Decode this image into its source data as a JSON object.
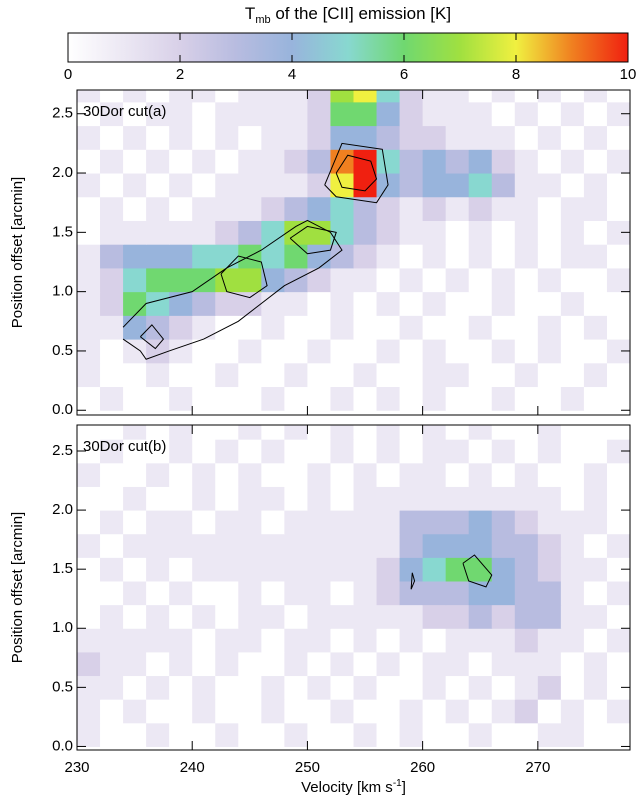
{
  "colorbar": {
    "title": [
      "T",
      "mb",
      " of the [CII] emission [K]"
    ],
    "lim": [
      0,
      10
    ],
    "ticks": [
      0,
      2,
      4,
      6,
      8,
      10
    ],
    "colorscale": [
      [
        0,
        "#ffffff"
      ],
      [
        2,
        "#d8d0e8"
      ],
      [
        3,
        "#b8bce0"
      ],
      [
        4,
        "#98b4dc"
      ],
      [
        5,
        "#88d8d0"
      ],
      [
        6,
        "#70d870"
      ],
      [
        7,
        "#a0e040"
      ],
      [
        8,
        "#f0f040"
      ],
      [
        9,
        "#f08020"
      ],
      [
        10,
        "#f02010"
      ]
    ]
  },
  "chart_data": [
    {
      "type": "heatmap",
      "label": "30Dor cut(a)",
      "ylabel": "Position offset [arcmin]",
      "xlim": [
        230,
        278
      ],
      "ylim": [
        -0.04,
        2.7
      ],
      "xticks": [
        230,
        240,
        250,
        260,
        270
      ],
      "yticks": [
        {
          "value": 0,
          "label": "0.0"
        },
        {
          "value": 0.5,
          "label": "0.5"
        },
        {
          "value": 1,
          "label": "1.0"
        },
        {
          "value": 1.5,
          "label": "1.5"
        },
        {
          "value": 2,
          "label": "2.0"
        },
        {
          "value": 2.5,
          "label": "2.5"
        }
      ],
      "xbins": [
        230,
        232,
        234,
        236,
        238,
        240,
        242,
        244,
        246,
        248,
        250,
        252,
        254,
        256,
        258,
        260,
        262,
        264,
        266,
        268,
        270,
        272,
        274,
        276,
        278
      ],
      "ybins": [
        0,
        0.2,
        0.4,
        0.6,
        0.8,
        1,
        1.2,
        1.4,
        1.6,
        1.8,
        2,
        2.2,
        2.4,
        2.6,
        2.8
      ],
      "z": [
        [
          0,
          1,
          0,
          0,
          1,
          0,
          0,
          0,
          1,
          0,
          0,
          1,
          0,
          1,
          0,
          1,
          0,
          0,
          1,
          0,
          0,
          1,
          0,
          0
        ],
        [
          1,
          0,
          0,
          1,
          0,
          0,
          1,
          0,
          0,
          1,
          0,
          0,
          1,
          0,
          0,
          1,
          1,
          0,
          0,
          1,
          0,
          0,
          1,
          0
        ],
        [
          1,
          0,
          1,
          2,
          1,
          0,
          0,
          1,
          0,
          0,
          1,
          0,
          0,
          1,
          0,
          1,
          0,
          0,
          1,
          0,
          1,
          0,
          0,
          1
        ],
        [
          1,
          1,
          4,
          3,
          2,
          1,
          0,
          0,
          1,
          0,
          0,
          1,
          0,
          0,
          1,
          0,
          0,
          1,
          0,
          0,
          1,
          0,
          1,
          0
        ],
        [
          1,
          2,
          6,
          5,
          4,
          3,
          2,
          2,
          1,
          1,
          0,
          1,
          0,
          1,
          0,
          1,
          0,
          0,
          1,
          0,
          0,
          1,
          0,
          0
        ],
        [
          1,
          2,
          5,
          6,
          6,
          6,
          7,
          7,
          4,
          3,
          2,
          1,
          1,
          0,
          1,
          0,
          1,
          0,
          1,
          0,
          1,
          0,
          0,
          1
        ],
        [
          1,
          3,
          4,
          4,
          4,
          5,
          5,
          6,
          5,
          6,
          4,
          3,
          2,
          1,
          0,
          1,
          0,
          1,
          0,
          1,
          0,
          1,
          1,
          0
        ],
        [
          0,
          1,
          1,
          1,
          1,
          1,
          2,
          3,
          5,
          7,
          7,
          5,
          3,
          2,
          1,
          1,
          0,
          1,
          0,
          1,
          0,
          1,
          0,
          1
        ],
        [
          0,
          1,
          0,
          1,
          0,
          1,
          1,
          1,
          2,
          3,
          4,
          5,
          3,
          2,
          1,
          2,
          1,
          2,
          1,
          1,
          0,
          1,
          1,
          0
        ],
        [
          1,
          0,
          1,
          0,
          1,
          0,
          1,
          1,
          1,
          1,
          2,
          8,
          10,
          4,
          3,
          4,
          4,
          5,
          3,
          1,
          1,
          0,
          1,
          0
        ],
        [
          0,
          1,
          0,
          1,
          0,
          1,
          0,
          1,
          1,
          2,
          3,
          9,
          10,
          5,
          3,
          4,
          3,
          4,
          2,
          1,
          0,
          1,
          0,
          1
        ],
        [
          1,
          0,
          1,
          0,
          1,
          0,
          1,
          0,
          1,
          1,
          2,
          4,
          4,
          3,
          2,
          2,
          1,
          1,
          1,
          0,
          1,
          0,
          1,
          0
        ],
        [
          0,
          1,
          0,
          1,
          1,
          0,
          1,
          1,
          1,
          1,
          2,
          6,
          6,
          4,
          2,
          1,
          1,
          1,
          0,
          1,
          0,
          1,
          0,
          1
        ],
        [
          1,
          0,
          1,
          0,
          1,
          1,
          0,
          1,
          1,
          1,
          2,
          7,
          8,
          5,
          2,
          1,
          1,
          0,
          1,
          0,
          1,
          0,
          1,
          0
        ]
      ],
      "contours": [
        {
          "x": [
            234,
            236,
            240,
            243,
            246,
            249,
            250,
            252,
            253,
            251,
            248,
            246,
            244,
            241,
            238,
            236,
            235.5,
            234
          ],
          "y": [
            0.7,
            0.9,
            1.0,
            1.2,
            1.35,
            1.55,
            1.6,
            1.5,
            1.35,
            1.2,
            1.05,
            0.9,
            0.75,
            0.6,
            0.5,
            0.43,
            0.5,
            0.6
          ]
        },
        {
          "x": [
            242.5,
            244,
            246,
            246.5,
            245,
            243,
            242.5
          ],
          "y": [
            1.15,
            1.3,
            1.25,
            1.05,
            0.95,
            1.0,
            1.15
          ]
        },
        {
          "x": [
            248.5,
            250,
            252.5,
            252,
            250,
            248.5
          ],
          "y": [
            1.45,
            1.55,
            1.5,
            1.35,
            1.32,
            1.45
          ]
        },
        {
          "x": [
            251.5,
            253,
            256.5,
            257,
            256,
            252.5,
            251.5
          ],
          "y": [
            1.9,
            2.25,
            2.2,
            1.9,
            1.75,
            1.8,
            1.9
          ]
        },
        {
          "x": [
            252.5,
            253.5,
            255.5,
            256,
            255,
            253,
            252.5
          ],
          "y": [
            2.0,
            2.15,
            2.1,
            1.95,
            1.85,
            1.88,
            2.0
          ]
        },
        {
          "x": [
            235.5,
            236.5,
            237.5,
            236.8,
            235.5
          ],
          "y": [
            0.62,
            0.72,
            0.6,
            0.52,
            0.62
          ]
        }
      ]
    },
    {
      "type": "heatmap",
      "label": "30Dor cut(b)",
      "ylabel": "Position offset [arcmin]",
      "xlabel": [
        "Velocity [km s",
        "-1",
        "]"
      ],
      "xlim": [
        230,
        278
      ],
      "ylim": [
        -0.03,
        2.72
      ],
      "xticks": [
        230,
        240,
        250,
        260,
        270
      ],
      "yticks": [
        {
          "value": 0,
          "label": "0.0"
        },
        {
          "value": 0.5,
          "label": "0.5"
        },
        {
          "value": 1,
          "label": "1.0"
        },
        {
          "value": 1.5,
          "label": "1.5"
        },
        {
          "value": 2,
          "label": "2.0"
        },
        {
          "value": 2.5,
          "label": "2.5"
        }
      ],
      "xbins": [
        230,
        232,
        234,
        236,
        238,
        240,
        242,
        244,
        246,
        248,
        250,
        252,
        254,
        256,
        258,
        260,
        262,
        264,
        266,
        268,
        270,
        272,
        274,
        276,
        278
      ],
      "ybins": [
        0,
        0.2,
        0.4,
        0.6,
        0.8,
        1,
        1.2,
        1.4,
        1.6,
        1.8,
        2,
        2.2,
        2.4,
        2.6,
        2.8
      ],
      "z": [
        [
          1,
          0,
          0,
          1,
          0,
          0,
          1,
          0,
          0,
          1,
          0,
          0,
          1,
          0,
          1,
          0,
          0,
          1,
          0,
          0,
          1,
          1,
          0,
          0
        ],
        [
          1,
          0,
          1,
          0,
          0,
          1,
          0,
          0,
          1,
          0,
          0,
          1,
          0,
          0,
          1,
          0,
          1,
          0,
          1,
          2,
          0,
          1,
          0,
          1
        ],
        [
          1,
          1,
          0,
          1,
          0,
          1,
          0,
          0,
          1,
          0,
          1,
          0,
          1,
          0,
          0,
          1,
          0,
          1,
          0,
          1,
          2,
          0,
          1,
          0
        ],
        [
          2,
          1,
          1,
          0,
          1,
          0,
          1,
          0,
          0,
          1,
          0,
          1,
          0,
          1,
          0,
          1,
          1,
          0,
          1,
          1,
          1,
          0,
          1,
          0
        ],
        [
          1,
          1,
          1,
          1,
          1,
          0,
          1,
          1,
          0,
          1,
          1,
          0,
          1,
          0,
          1,
          0,
          1,
          1,
          1,
          2,
          1,
          1,
          0,
          1
        ],
        [
          0,
          1,
          0,
          1,
          0,
          1,
          0,
          1,
          1,
          0,
          1,
          1,
          1,
          1,
          1,
          2,
          2,
          3,
          2,
          3,
          3,
          1,
          1,
          0
        ],
        [
          0,
          0,
          1,
          0,
          1,
          0,
          0,
          1,
          0,
          1,
          1,
          0,
          1,
          2,
          3,
          3,
          3,
          4,
          4,
          3,
          3,
          1,
          0,
          1
        ],
        [
          0,
          1,
          0,
          1,
          0,
          1,
          1,
          1,
          1,
          1,
          1,
          1,
          1,
          2,
          4,
          5,
          6,
          6,
          4,
          3,
          2,
          1,
          1,
          0
        ],
        [
          1,
          0,
          1,
          1,
          1,
          1,
          1,
          1,
          1,
          1,
          1,
          1,
          1,
          1,
          3,
          4,
          4,
          4,
          3,
          3,
          2,
          1,
          0,
          1
        ],
        [
          0,
          1,
          0,
          1,
          1,
          0,
          1,
          1,
          0,
          1,
          1,
          1,
          1,
          1,
          3,
          3,
          3,
          4,
          3,
          2,
          1,
          1,
          1,
          0
        ],
        [
          0,
          0,
          1,
          0,
          0,
          1,
          0,
          1,
          1,
          0,
          1,
          0,
          1,
          1,
          1,
          1,
          1,
          1,
          1,
          1,
          1,
          0,
          1,
          0
        ],
        [
          1,
          0,
          0,
          1,
          0,
          1,
          0,
          1,
          0,
          0,
          1,
          0,
          1,
          0,
          1,
          1,
          0,
          1,
          0,
          1,
          0,
          0,
          1,
          0
        ],
        [
          0,
          1,
          0,
          0,
          1,
          0,
          1,
          0,
          1,
          0,
          0,
          1,
          0,
          1,
          0,
          1,
          1,
          0,
          1,
          0,
          1,
          0,
          0,
          1
        ],
        [
          0,
          0,
          1,
          0,
          1,
          0,
          0,
          1,
          0,
          1,
          0,
          1,
          0,
          1,
          0,
          1,
          0,
          1,
          0,
          0,
          1,
          0,
          0,
          0
        ]
      ],
      "contours": [
        {
          "x": [
            263.5,
            264.5,
            266,
            265.5,
            264,
            263.5
          ],
          "y": [
            1.55,
            1.62,
            1.45,
            1.35,
            1.4,
            1.55
          ]
        },
        {
          "x": [
            259,
            259.3,
            259.1,
            259
          ],
          "y": [
            1.33,
            1.4,
            1.47,
            1.33
          ]
        }
      ]
    }
  ]
}
